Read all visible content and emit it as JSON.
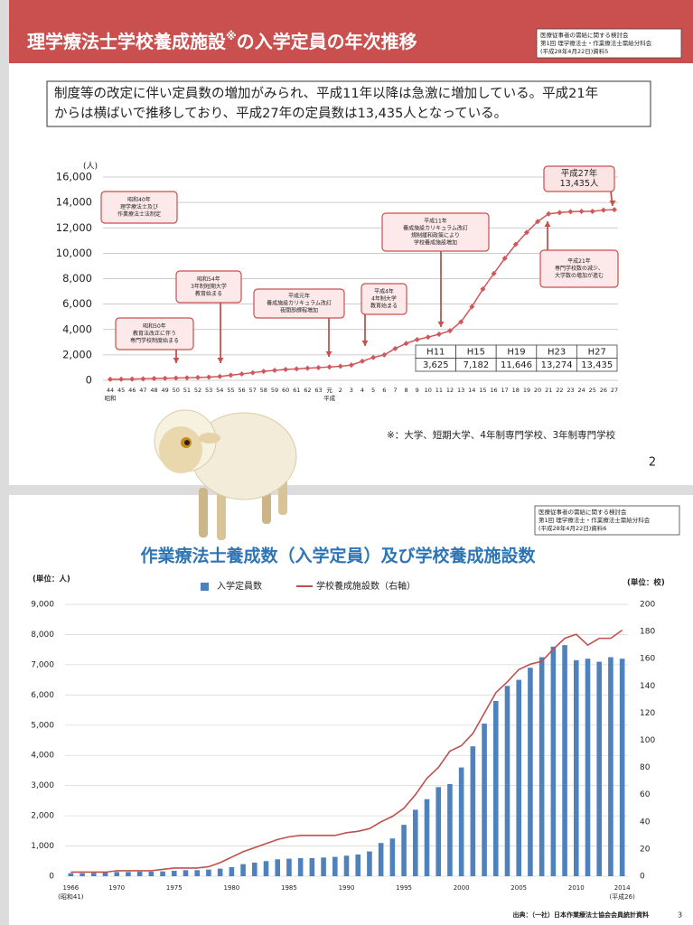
{
  "chart_data": [
    {
      "type": "line",
      "title": "理学療法士学校養成施設",
      "title_mark": "※",
      "title_suffix": "の入学定員の年次推移",
      "source_note": [
        "医療従事者の需給に関する検討会",
        "第1回 理学療法士・作業療法士需給分科会",
        "(平成28年4月22日)資料5"
      ],
      "summary": [
        "制度等の改定に伴い定員数の増加がみられ、平成11年以降は急激に増加している。平成21年",
        "からは横ばいで推移しており、平成27年の定員数は13,435人となっている。"
      ],
      "y_unit": "(人)",
      "categories": [
        "44",
        "45",
        "46",
        "47",
        "48",
        "49",
        "50",
        "51",
        "52",
        "53",
        "54",
        "55",
        "56",
        "57",
        "58",
        "59",
        "60",
        "61",
        "62",
        "63",
        "元",
        "2",
        "3",
        "4",
        "5",
        "6",
        "7",
        "8",
        "9",
        "10",
        "11",
        "12",
        "13",
        "14",
        "15",
        "16",
        "17",
        "18",
        "19",
        "20",
        "21",
        "22",
        "23",
        "24",
        "25",
        "26",
        "27"
      ],
      "sub_categories": [
        "昭和",
        null,
        null,
        null,
        null,
        null,
        null,
        null,
        null,
        null,
        null,
        null,
        null,
        null,
        null,
        null,
        null,
        null,
        null,
        null,
        "平成",
        null,
        null,
        null,
        null,
        null,
        null,
        null,
        null,
        null,
        null,
        null,
        null,
        null,
        null,
        null,
        null,
        null,
        null,
        null,
        null,
        null,
        null,
        null,
        null,
        null,
        null
      ],
      "values": [
        80,
        90,
        100,
        120,
        140,
        160,
        180,
        200,
        220,
        250,
        300,
        400,
        500,
        600,
        700,
        780,
        850,
        900,
        950,
        1000,
        1050,
        1100,
        1200,
        1500,
        1800,
        2000,
        2500,
        2900,
        3200,
        3400,
        3625,
        3900,
        4600,
        5800,
        7182,
        8400,
        9600,
        10700,
        11646,
        12500,
        13100,
        13200,
        13274,
        13300,
        13300,
        13400,
        13435
      ],
      "color": "#d0575a",
      "ylim": [
        0,
        16000
      ],
      "yticks": [
        0,
        {
          "value": 2000,
          "label": "2,000"
        },
        {
          "value": 4000,
          "label": "4,000"
        },
        {
          "value": 6000,
          "label": "6,000"
        },
        {
          "value": 8000,
          "label": "8,000"
        },
        {
          "value": 10000,
          "label": "10,000"
        },
        {
          "value": 12000,
          "label": "12,000"
        },
        {
          "value": 14000,
          "label": "14,000"
        },
        {
          "value": 16000,
          "label": "16,000"
        }
      ],
      "grid": true,
      "callouts": [
        [
          "昭和40年",
          "理学療法士及び",
          "作業療法士法制定"
        ],
        [
          "昭和50年",
          "教育法改正に伴う",
          "専門学校制度始まる"
        ],
        [
          "昭和54年",
          "3年制短期大学",
          "教育始まる"
        ],
        [
          "平成元年",
          "養成施設カリキュラム改訂",
          "夜間部課程増加"
        ],
        [
          "平成4年",
          "4年制大学",
          "教育始まる"
        ],
        [
          "平成11年",
          "養成施設カリキュラム改訂",
          "規制緩和政策により",
          "学校養成施設増加"
        ],
        [
          "平成21年",
          "専門学校数の減少、",
          "大学数の増加が進む"
        ],
        [
          "平成27年",
          "13,435人"
        ]
      ],
      "table": {
        "header": [
          "H11",
          "H15",
          "H19",
          "H23",
          "H27"
        ],
        "values": [
          3625,
          7182,
          11646,
          13274,
          13435
        ],
        "value_labels": [
          "3,625",
          "7,182",
          "11,646",
          "13,274",
          "13,435"
        ]
      },
      "footnote": "※：大学、短期大学、4年制専門学校、3年制専門学校",
      "page": "2"
    },
    {
      "type": "bar",
      "title": "作業療法士養成数（入学定員）及び学校養成施設数",
      "source_note": [
        "医療従事者の需給に関する検討会",
        "第1回 理学療法士・作業療法士需給分科会",
        "(平成28年4月22日)資料6"
      ],
      "y_unit": "(単位：人)",
      "y2_unit": "(単位：校)",
      "categories": [
        "1966",
        null,
        null,
        null,
        "1970",
        null,
        null,
        null,
        null,
        "1975",
        null,
        null,
        null,
        null,
        "1980",
        null,
        null,
        null,
        null,
        "1985",
        null,
        null,
        null,
        null,
        "1990",
        null,
        null,
        null,
        null,
        "1995",
        null,
        null,
        null,
        null,
        "2000",
        null,
        null,
        null,
        null,
        "2005",
        null,
        null,
        null,
        null,
        "2010",
        null,
        null,
        null,
        "2014"
      ],
      "sub_categories": [
        "(昭和41)",
        null,
        null,
        null,
        null,
        null,
        null,
        null,
        null,
        null,
        null,
        null,
        null,
        null,
        null,
        null,
        null,
        null,
        null,
        null,
        null,
        null,
        null,
        null,
        null,
        null,
        null,
        null,
        null,
        null,
        null,
        null,
        null,
        null,
        null,
        null,
        null,
        null,
        null,
        null,
        null,
        null,
        null,
        null,
        null,
        null,
        null,
        null,
        "(平成26)"
      ],
      "series": [
        {
          "name": "入学定員数",
          "color": "#4f81bd",
          "values": [
            100,
            100,
            110,
            120,
            140,
            140,
            150,
            150,
            160,
            180,
            200,
            200,
            220,
            250,
            300,
            400,
            450,
            500,
            560,
            580,
            600,
            600,
            620,
            640,
            680,
            720,
            820,
            1100,
            1250,
            1700,
            2200,
            2550,
            2950,
            3050,
            3600,
            4300,
            5050,
            5800,
            6300,
            6500,
            6900,
            7250,
            7600,
            7650,
            7150,
            7200,
            7100,
            7250,
            7200
          ]
        },
        {
          "name": "学校養成施設数（右軸）",
          "color": "#c0504d",
          "type": "line",
          "axis": "y2",
          "values": [
            3,
            3,
            3,
            3,
            4,
            4,
            4,
            4,
            5,
            6,
            6,
            6,
            7,
            10,
            14,
            18,
            21,
            24,
            27,
            29,
            30,
            30,
            30,
            30,
            32,
            33,
            35,
            40,
            44,
            50,
            60,
            72,
            80,
            92,
            96,
            105,
            120,
            135,
            143,
            152,
            156,
            158,
            167,
            175,
            178,
            170,
            175,
            175,
            181
          ]
        }
      ],
      "ylim": [
        0,
        9000
      ],
      "yticks": [
        0,
        {
          "value": 1000,
          "label": "1,000"
        },
        {
          "value": 2000,
          "label": "2,000"
        },
        {
          "value": 3000,
          "label": "3,000"
        },
        {
          "value": 4000,
          "label": "4,000"
        },
        {
          "value": 5000,
          "label": "5,000"
        },
        {
          "value": 6000,
          "label": "6,000"
        },
        {
          "value": 7000,
          "label": "7,000"
        },
        {
          "value": 8000,
          "label": "8,000"
        },
        {
          "value": 9000,
          "label": "9,000"
        }
      ],
      "y2lim": [
        0,
        200
      ],
      "y2ticks": [
        0,
        20,
        40,
        60,
        80,
        100,
        120,
        140,
        160,
        180,
        200
      ],
      "grid": true,
      "legend": "top",
      "source": "出典：（一社）日本作業療法士協会会員統計資料",
      "page": "3"
    }
  ]
}
